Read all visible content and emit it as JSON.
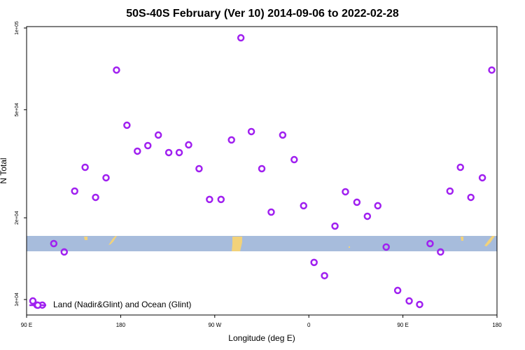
{
  "chart_data": {
    "type": "scatter",
    "title": "50S-40S February (Ver 10)   2014-09-06 to 2022-02-28",
    "x_label": "Longitude (deg E)",
    "y_label": "N Total",
    "xlim": [
      90,
      540
    ],
    "xticks": [
      {
        "value": 90,
        "label": "90 E"
      },
      180,
      {
        "value": 270,
        "label": "90 W"
      },
      {
        "value": 360,
        "label": "0"
      },
      {
        "value": 450,
        "label": "90 E"
      },
      {
        "value": 540,
        "label": "180"
      }
    ],
    "ylim": [
      8770,
      101200
    ],
    "log_y": true,
    "yticks": [
      {
        "value": 10000,
        "label": "1e+04"
      },
      {
        "value": 20000,
        "label": "2e+04"
      },
      {
        "value": 50000,
        "label": "5e+04"
      },
      {
        "value": 100000,
        "label": "1e+05"
      }
    ],
    "legend": "lower left",
    "series": [
      {
        "name": "Land (Nadir&Glint) and Ocean (Glint)",
        "color": "#a020f0",
        "x": [
          96,
          100,
          105,
          116,
          126,
          136,
          146,
          156,
          166,
          176,
          186,
          196,
          206,
          216,
          226,
          236,
          245,
          255,
          265,
          276,
          286,
          295,
          305,
          315,
          324,
          335,
          346,
          355,
          365,
          375,
          385,
          395,
          406,
          416,
          426,
          434,
          445,
          456,
          466,
          476,
          486,
          495,
          505,
          515,
          526,
          535
        ],
        "values": [
          9880,
          9540,
          9540,
          16070,
          14970,
          25080,
          30690,
          23780,
          28080,
          70000,
          43840,
          35190,
          36890,
          40340,
          34770,
          34770,
          37130,
          30330,
          23370,
          23370,
          38710,
          92000,
          41550,
          30330,
          20990,
          40340,
          32750,
          22150,
          13700,
          12240,
          18640,
          24940,
          22820,
          20260,
          22150,
          15610,
          10800,
          9880,
          9590,
          16070,
          14970,
          25080,
          30690,
          23780,
          28080,
          70000
        ]
      }
    ]
  }
}
